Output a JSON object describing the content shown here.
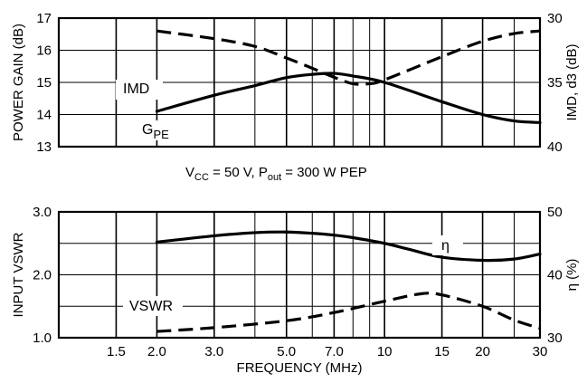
{
  "colors": {
    "line": "#000000",
    "background": "#ffffff"
  },
  "conditions": {
    "vcc_label": "V",
    "vcc_sub": "CC",
    "vcc_value": " = 50 V, P",
    "pout_sub": "out",
    "pout_value": " = 300 W PEP"
  },
  "chart_data": [
    {
      "type": "line",
      "panel": "top",
      "xscale": "log",
      "xlim": [
        1.0,
        30
      ],
      "x_ticks": [
        1.5,
        2.0,
        3.0,
        5.0,
        7.0,
        10,
        15,
        20,
        30
      ],
      "ylabel_left": "POWER GAIN (dB)",
      "ylim_left": [
        13,
        17
      ],
      "yticks_left": [
        "13",
        "14",
        "15",
        "16",
        "17"
      ],
      "ylabel_right": "IMD, d3 (dB)",
      "ylim_right": [
        40,
        30
      ],
      "yticks_right": [
        "30",
        "35",
        "40"
      ],
      "grid": true,
      "series": [
        {
          "name": "G",
          "name_sub": "PE",
          "axis": "left",
          "style": "solid",
          "x": [
            2.0,
            3.0,
            4.0,
            5.0,
            6.0,
            7.0,
            8.0,
            10,
            15,
            20,
            25,
            30
          ],
          "y": [
            14.1,
            14.6,
            14.9,
            15.15,
            15.25,
            15.28,
            15.2,
            15.0,
            14.4,
            14.0,
            13.8,
            13.75
          ]
        },
        {
          "name": "IMD",
          "axis": "right",
          "style": "dashed",
          "x": [
            2.0,
            3.0,
            4.0,
            5.0,
            6.0,
            7.0,
            8.0,
            9.0,
            10,
            15,
            20,
            25,
            30
          ],
          "y": [
            31.0,
            31.6,
            32.2,
            33.1,
            33.9,
            34.6,
            35.1,
            35.1,
            34.8,
            33.0,
            31.8,
            31.2,
            31.0
          ]
        }
      ]
    },
    {
      "type": "line",
      "panel": "bottom",
      "xscale": "log",
      "xlim": [
        1.0,
        30
      ],
      "x_ticks": [
        1.5,
        2.0,
        3.0,
        5.0,
        7.0,
        10,
        15,
        20,
        30
      ],
      "x_tick_labels": [
        "1.5",
        "2.0",
        "3.0",
        "5.0",
        "7.0",
        "10",
        "15",
        "20",
        "30"
      ],
      "xlabel": "FREQUENCY (MHz)",
      "ylabel_left": "INPUT VSWR",
      "ylim_left": [
        1.0,
        3.0
      ],
      "yticks_left": [
        "1.0",
        "2.0",
        "3.0"
      ],
      "ylabel_right": "η (%)",
      "ylim_right": [
        30,
        50
      ],
      "yticks_right": [
        "30",
        "40",
        "50"
      ],
      "grid": true,
      "series": [
        {
          "name": "η",
          "axis": "right",
          "style": "solid",
          "x": [
            2.0,
            3.0,
            4.0,
            5.0,
            6.0,
            7.0,
            8.0,
            10,
            12,
            15,
            20,
            25,
            30
          ],
          "y": [
            45.2,
            46.2,
            46.7,
            46.8,
            46.6,
            46.3,
            45.9,
            45.0,
            44.0,
            42.8,
            42.3,
            42.5,
            43.3
          ]
        },
        {
          "name": "VSWR",
          "axis": "left",
          "style": "dashed",
          "x": [
            2.0,
            3.0,
            5.0,
            7.0,
            10,
            13,
            15,
            20,
            25,
            30
          ],
          "y": [
            1.1,
            1.16,
            1.27,
            1.4,
            1.58,
            1.7,
            1.68,
            1.5,
            1.28,
            1.15
          ]
        }
      ]
    }
  ]
}
